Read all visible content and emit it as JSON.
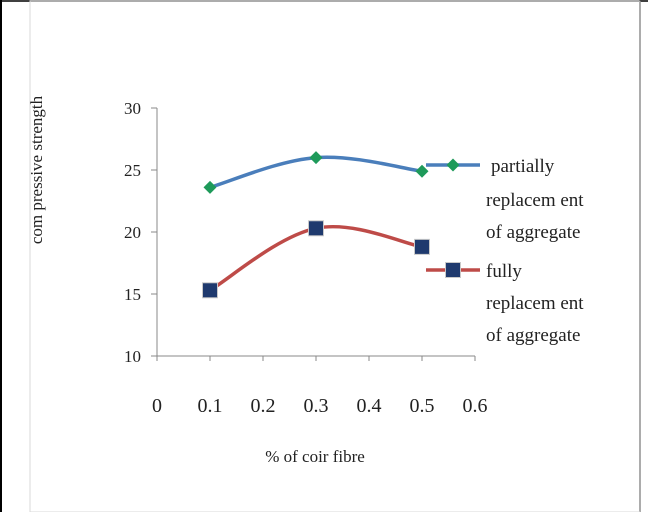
{
  "chart_data": {
    "type": "line",
    "title": "",
    "xlabel": "% of coir fibre",
    "ylabel": "com pressive strength",
    "xlim": [
      0,
      0.6
    ],
    "ylim": [
      10,
      30
    ],
    "x_ticks": [
      "0",
      "0.1",
      "0.2",
      "0.3",
      "0.4",
      "0.5",
      "0.6"
    ],
    "y_ticks": [
      "10",
      "15",
      "20",
      "25",
      "30"
    ],
    "grid": false,
    "legend_position": "right",
    "series": [
      {
        "name": "partially replacem ent of aggregate",
        "legend_lines": [
          "partially",
          "replacem ent",
          "of aggregate"
        ],
        "color": "#4a7ebb",
        "marker": "diamond",
        "marker_color": "#1e9a5a",
        "x": [
          0.1,
          0.3,
          0.5
        ],
        "values": [
          23.6,
          26.0,
          24.9
        ]
      },
      {
        "name": "fully replacem ent of aggregate",
        "legend_lines": [
          "fully",
          "replacem ent",
          "of aggregate"
        ],
        "color": "#be4b48",
        "marker": "square",
        "marker_color": "#1f3a6e",
        "x": [
          0.1,
          0.3,
          0.5
        ],
        "values": [
          15.3,
          20.3,
          18.8
        ]
      }
    ]
  }
}
